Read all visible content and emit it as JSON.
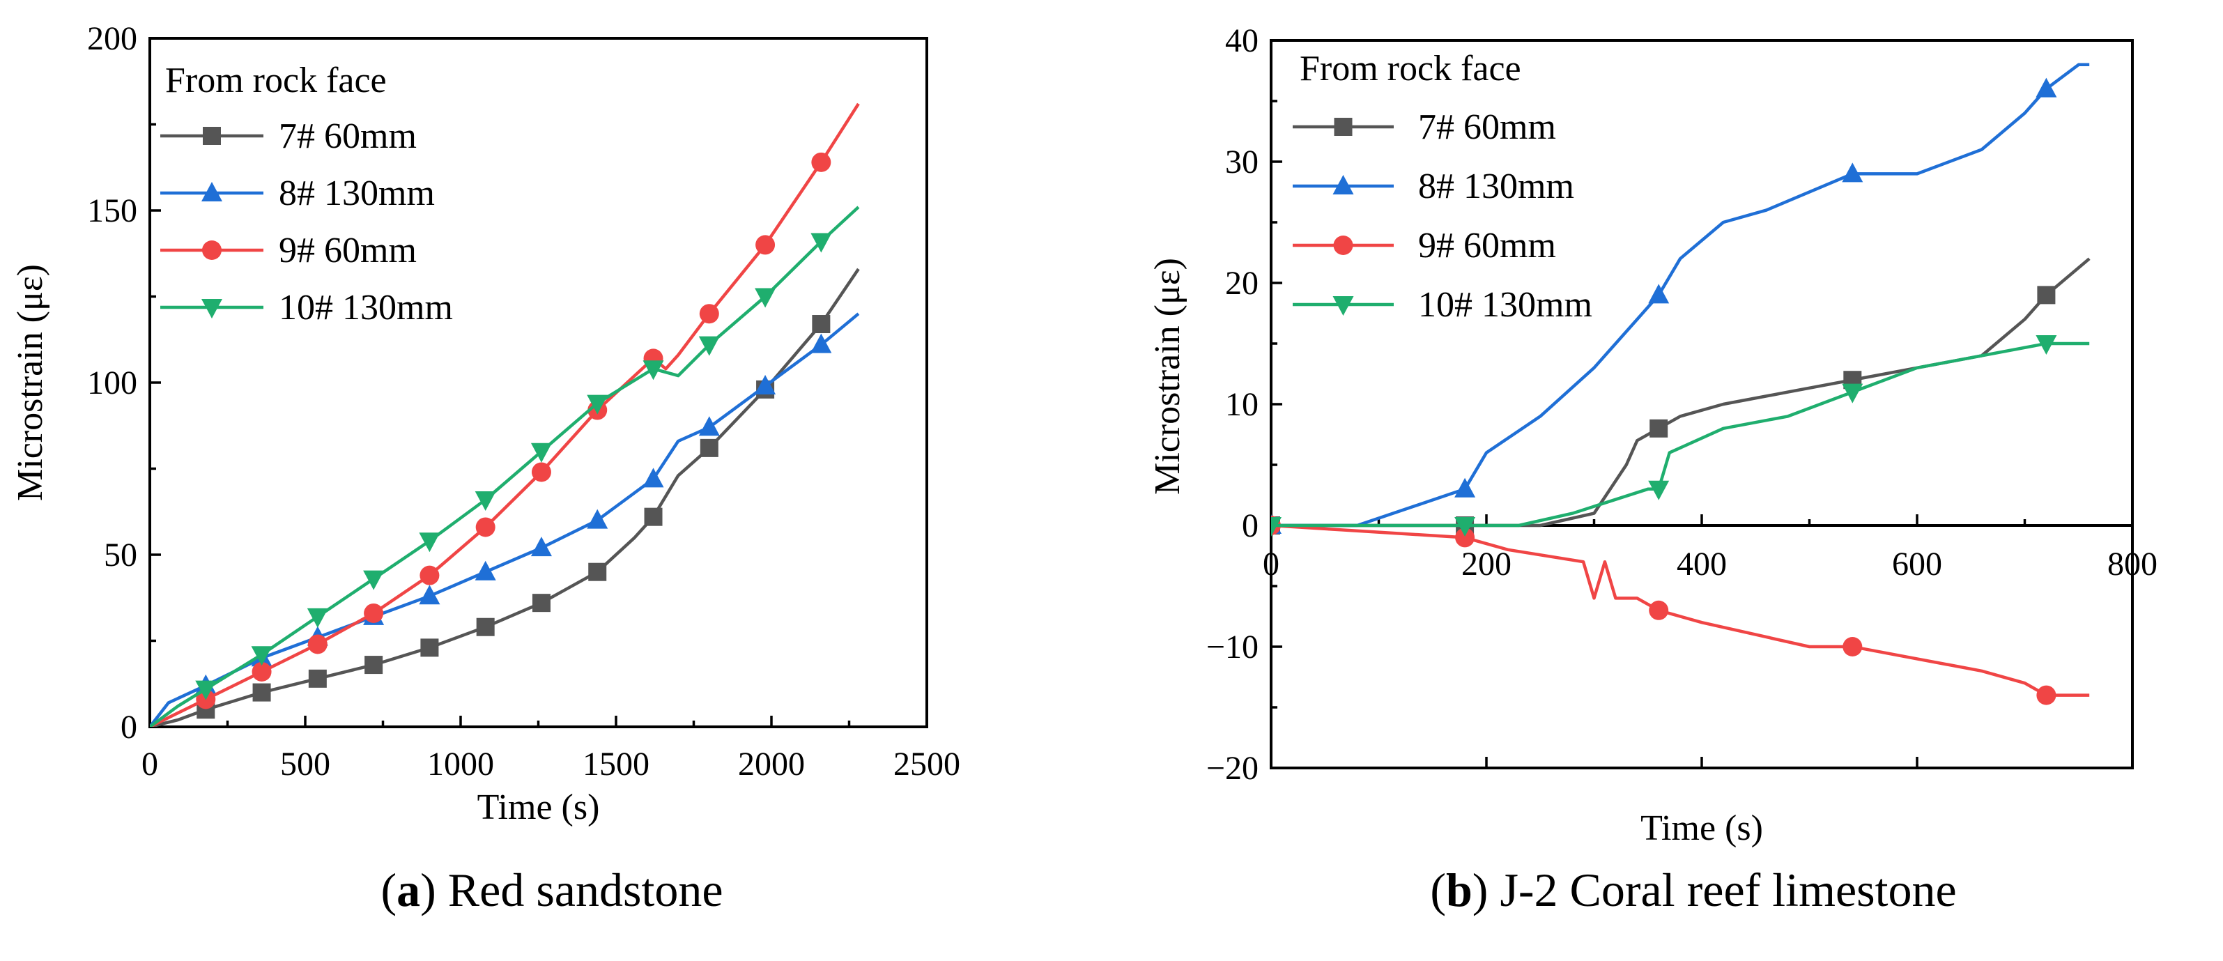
{
  "chart_data": [
    {
      "type": "line",
      "caption": {
        "letter": "a",
        "text": "Red sandstone"
      },
      "xlabel": "Time (s)",
      "ylabel": "Microstrain (με)",
      "xlim": [
        0,
        2500
      ],
      "ylim": [
        0,
        200
      ],
      "xticks": [
        0,
        500,
        1000,
        1500,
        2000,
        2500
      ],
      "yticks": [
        0,
        50,
        100,
        150,
        200
      ],
      "legend_title": "From rock face",
      "legend_position": "top-left",
      "series": [
        {
          "name": "7# 60mm",
          "color": "#555555",
          "marker": "square",
          "x": [
            0,
            90,
            180,
            360,
            540,
            720,
            900,
            1080,
            1260,
            1440,
            1560,
            1620,
            1700,
            1800,
            1980,
            2160,
            2280
          ],
          "y": [
            0,
            2,
            5,
            10,
            14,
            18,
            23,
            29,
            36,
            45,
            55,
            61,
            73,
            81,
            98,
            117,
            133
          ],
          "marker_x": [
            180,
            360,
            540,
            720,
            900,
            1080,
            1260,
            1440,
            1620,
            1800,
            1980,
            2160
          ]
        },
        {
          "name": "8# 130mm",
          "color": "#1f6fd6",
          "marker": "triangle-up",
          "x": [
            0,
            60,
            180,
            360,
            540,
            720,
            900,
            1080,
            1260,
            1440,
            1620,
            1700,
            1800,
            1980,
            2160,
            2280
          ],
          "y": [
            0,
            7,
            12,
            20,
            26,
            32,
            38,
            45,
            52,
            60,
            72,
            83,
            87,
            99,
            111,
            120
          ],
          "marker_x": [
            180,
            360,
            540,
            720,
            900,
            1080,
            1260,
            1440,
            1620,
            1800,
            1980,
            2160
          ]
        },
        {
          "name": "9# 60mm",
          "color": "#f04545",
          "marker": "circle",
          "x": [
            0,
            90,
            180,
            360,
            540,
            720,
            900,
            1080,
            1260,
            1440,
            1620,
            1660,
            1700,
            1800,
            1980,
            2160,
            2280
          ],
          "y": [
            0,
            4,
            8,
            16,
            24,
            33,
            44,
            58,
            74,
            92,
            107,
            104,
            108,
            120,
            140,
            164,
            181
          ],
          "marker_x": [
            180,
            360,
            540,
            720,
            900,
            1080,
            1260,
            1440,
            1620,
            1800,
            1980,
            2160
          ]
        },
        {
          "name": "10# 130mm",
          "color": "#1fae6e",
          "marker": "triangle-down",
          "x": [
            0,
            90,
            180,
            360,
            540,
            720,
            900,
            1080,
            1260,
            1440,
            1620,
            1700,
            1800,
            1980,
            2160,
            2280
          ],
          "y": [
            0,
            6,
            11,
            21,
            32,
            43,
            54,
            66,
            80,
            94,
            104,
            102,
            111,
            125,
            141,
            151
          ],
          "marker_x": [
            180,
            360,
            540,
            720,
            900,
            1080,
            1260,
            1440,
            1620,
            1800,
            1980,
            2160
          ]
        }
      ]
    },
    {
      "type": "line",
      "caption": {
        "letter": "b",
        "text": "J-2 Coral reef limestone"
      },
      "xlabel": "Time (s)",
      "ylabel": "Microstrain (με)",
      "xlim": [
        0,
        800
      ],
      "ylim": [
        -20,
        40
      ],
      "xticks": [
        0,
        200,
        400,
        600,
        800
      ],
      "yticks": [
        -20,
        -10,
        0,
        10,
        20,
        30,
        40
      ],
      "ytick_labels": [
        "−20",
        "−10",
        "0",
        "10",
        "20",
        "30",
        "40"
      ],
      "legend_title": "From rock face",
      "legend_position": "top-left",
      "series": [
        {
          "name": "7# 60mm",
          "color": "#555555",
          "marker": "square",
          "x": [
            0,
            250,
            300,
            330,
            340,
            360,
            380,
            420,
            480,
            540,
            600,
            660,
            700,
            720,
            760
          ],
          "y": [
            0,
            0,
            1,
            5,
            7,
            8,
            9,
            10,
            11,
            12,
            13,
            14,
            17,
            19,
            22
          ],
          "marker_x": [
            0,
            180,
            360,
            540,
            720
          ]
        },
        {
          "name": "8# 130mm",
          "color": "#1f6fd6",
          "marker": "triangle-up",
          "x": [
            0,
            80,
            180,
            200,
            250,
            300,
            340,
            360,
            380,
            420,
            460,
            540,
            600,
            660,
            700,
            720,
            750,
            760
          ],
          "y": [
            0,
            0,
            3,
            6,
            9,
            13,
            17,
            19,
            22,
            25,
            26,
            29,
            29,
            31,
            34,
            36,
            38,
            38
          ],
          "marker_x": [
            0,
            180,
            360,
            540,
            720
          ]
        },
        {
          "name": "9# 60mm",
          "color": "#f04545",
          "marker": "circle",
          "x": [
            0,
            180,
            220,
            290,
            300,
            310,
            320,
            340,
            360,
            400,
            450,
            500,
            540,
            600,
            660,
            700,
            720,
            760
          ],
          "y": [
            0,
            -1,
            -2,
            -3,
            -6,
            -3,
            -6,
            -6,
            -7,
            -8,
            -9,
            -10,
            -10,
            -11,
            -12,
            -13,
            -14,
            -14
          ],
          "marker_x": [
            0,
            180,
            360,
            540,
            720
          ]
        },
        {
          "name": "10# 130mm",
          "color": "#1fae6e",
          "marker": "triangle-down",
          "x": [
            0,
            230,
            280,
            350,
            360,
            370,
            420,
            480,
            540,
            600,
            660,
            720,
            760
          ],
          "y": [
            0,
            0,
            1,
            3,
            3,
            6,
            8,
            9,
            11,
            13,
            14,
            15,
            15
          ],
          "marker_x": [
            0,
            180,
            360,
            540,
            720
          ]
        }
      ]
    }
  ]
}
